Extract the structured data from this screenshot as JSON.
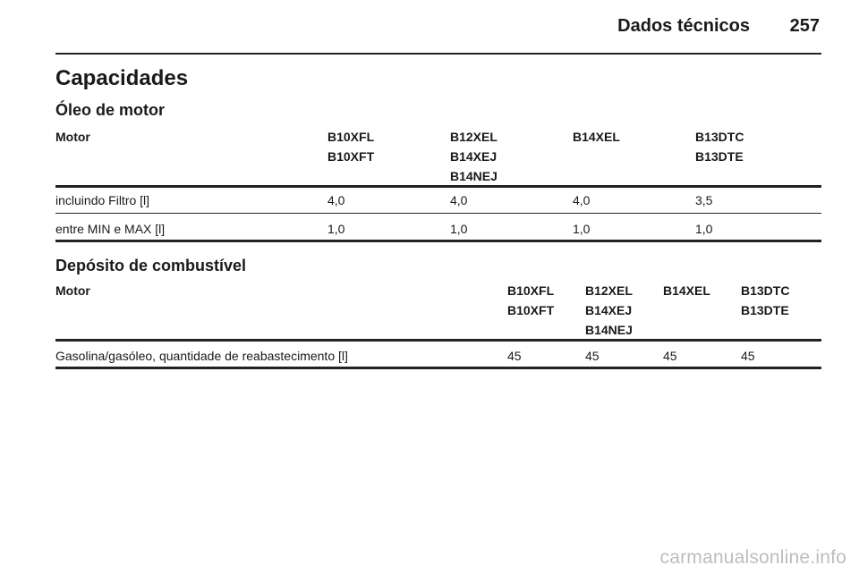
{
  "header": {
    "title": "Dados técnicos",
    "page": "257"
  },
  "section_title": "Capacidades",
  "oil": {
    "title": "Óleo de motor",
    "head_label": "Motor",
    "columns": [
      {
        "lines": [
          "B10XFL",
          "B10XFT"
        ]
      },
      {
        "lines": [
          "B12XEL",
          "B14XEJ",
          "B14NEJ"
        ]
      },
      {
        "lines": [
          "B14XEL"
        ]
      },
      {
        "lines": [
          "B13DTC",
          "B13DTE"
        ]
      }
    ],
    "rows": [
      {
        "label": "incluindo Filtro [l]",
        "values": [
          "4,0",
          "4,0",
          "4,0",
          "3,5"
        ]
      },
      {
        "label": "entre MIN e MAX [l]",
        "values": [
          "1,0",
          "1,0",
          "1,0",
          "1,0"
        ]
      }
    ]
  },
  "fuel": {
    "title": "Depósito de combustível",
    "head_label": "Motor",
    "columns": [
      {
        "lines": [
          "B10XFL",
          "B10XFT"
        ]
      },
      {
        "lines": [
          "B12XEL",
          "B14XEJ",
          "B14NEJ"
        ]
      },
      {
        "lines": [
          "B14XEL"
        ]
      },
      {
        "lines": [
          "B13DTC",
          "B13DTE"
        ]
      }
    ],
    "rows": [
      {
        "label": "Gasolina/gasóleo, quantidade de reabastecimento [l]",
        "values": [
          "45",
          "45",
          "45",
          "45"
        ]
      }
    ]
  },
  "watermark": "carmanualsonline.info"
}
